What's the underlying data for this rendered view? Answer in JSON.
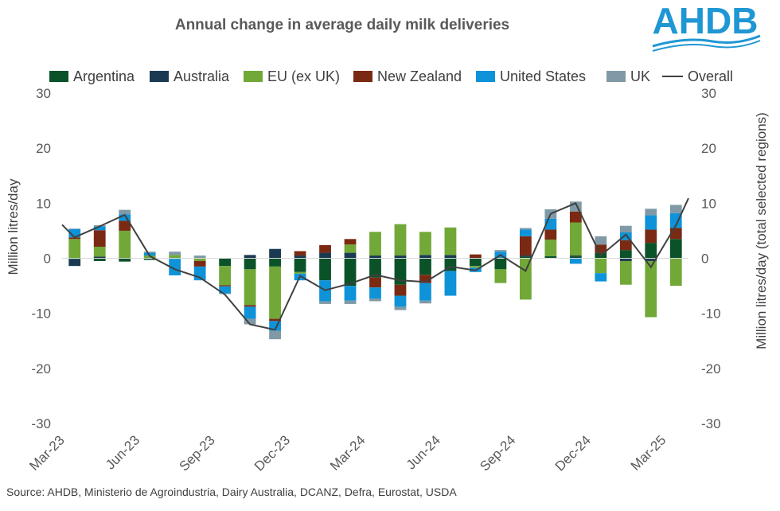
{
  "chart_data": {
    "type": "bar",
    "stacked": true,
    "title": "Annual change in average daily milk deliveries",
    "ylabel_left": "Million litres/day",
    "ylabel_right": "Million litres/day (total selected regions)",
    "ylim": [
      -30,
      30
    ],
    "yticks": [
      -30,
      -20,
      -10,
      0,
      10,
      20,
      30
    ],
    "x_labels": [
      "Mar-23",
      "Jun-23",
      "Sep-23",
      "Dec-23",
      "Mar-24",
      "Jun-24",
      "Sep-24",
      "Dec-24",
      "Mar-25"
    ],
    "categories": [
      "Mar-23",
      "Apr-23",
      "May-23",
      "Jun-23",
      "Jul-23",
      "Aug-23",
      "Sep-23",
      "Oct-23",
      "Nov-23",
      "Dec-23",
      "Jan-24",
      "Feb-24",
      "Mar-24",
      "Apr-24",
      "May-24",
      "Jun-24",
      "Jul-24",
      "Aug-24",
      "Sep-24",
      "Oct-24",
      "Nov-24",
      "Dec-24",
      "Jan-25",
      "Feb-25",
      "Mar-25"
    ],
    "series": [
      {
        "name": "Argentina",
        "color": "#0b5229",
        "values": [
          -0.2,
          -0.5,
          -0.6,
          -0.3,
          -0.1,
          0.0,
          -1.4,
          -2.0,
          -1.5,
          -2.5,
          -4.0,
          -5.0,
          -3.5,
          -4.8,
          -3.0,
          -2.3,
          -1.4,
          -2.0,
          0.3,
          0.4,
          0.3,
          1.0,
          1.5,
          2.8,
          3.5
        ]
      },
      {
        "name": "Australia",
        "color": "#1b3a52",
        "values": [
          -1.2,
          0.3,
          0.0,
          0.0,
          0.0,
          0.0,
          0.0,
          0.6,
          1.7,
          0.5,
          1.0,
          1.0,
          0.5,
          0.5,
          0.6,
          0.6,
          0.0,
          0.0,
          0.2,
          0.0,
          0.2,
          0.0,
          -0.5,
          -0.5,
          0.0
        ]
      },
      {
        "name": "EU (ex UK)",
        "color": "#71a837",
        "values": [
          3.5,
          1.8,
          5.0,
          0.5,
          0.6,
          -0.5,
          -3.5,
          -6.5,
          -9.5,
          -0.3,
          0.0,
          1.5,
          4.3,
          5.7,
          4.2,
          5.0,
          -0.3,
          -2.5,
          -7.5,
          3.0,
          6.0,
          -2.7,
          -4.3,
          -10.2,
          -5.0
        ]
      },
      {
        "name": "New Zealand",
        "color": "#7a2a12",
        "values": [
          0.3,
          3.0,
          1.8,
          0.0,
          0.0,
          -1.0,
          -0.2,
          -0.3,
          -0.4,
          0.8,
          1.4,
          1.0,
          -1.8,
          -2.0,
          -1.5,
          0.0,
          0.7,
          0.0,
          3.5,
          1.8,
          2.0,
          1.5,
          1.8,
          2.4,
          2.0
        ]
      },
      {
        "name": "United States",
        "color": "#0e93d8",
        "values": [
          1.5,
          0.7,
          1.2,
          0.5,
          -3.0,
          -2.5,
          -1.3,
          -2.2,
          -1.8,
          -1.2,
          -3.8,
          -2.7,
          -2.0,
          -2.0,
          -3.2,
          -4.5,
          -0.8,
          1.2,
          1.2,
          2.0,
          -1.0,
          -1.5,
          1.4,
          2.6,
          2.7
        ]
      },
      {
        "name": "UK",
        "color": "#7f9aa6",
        "values": [
          0.1,
          0.2,
          0.8,
          0.2,
          0.6,
          0.5,
          -0.1,
          -1.0,
          -1.5,
          0.0,
          -0.5,
          -0.6,
          -0.5,
          -0.6,
          -0.5,
          0.0,
          0.0,
          0.3,
          0.3,
          1.7,
          1.8,
          1.5,
          1.2,
          1.2,
          1.5
        ]
      },
      {
        "name": "Overall",
        "color": "#404040",
        "type": "line",
        "values": [
          3.8,
          5.8,
          7.9,
          0.4,
          -2.0,
          -3.5,
          -6.6,
          -12.0,
          -13.0,
          -3.2,
          -5.8,
          -4.6,
          -3.0,
          -4.0,
          -4.3,
          -1.5,
          -2.2,
          0.6,
          -2.3,
          8.1,
          10.0,
          0.5,
          4.3,
          -1.6,
          6.0
        ]
      }
    ],
    "overall_edges": {
      "start": 6.1,
      "end": 10.9
    },
    "legend_position": "top",
    "grid": false
  },
  "source": "Source: AHDB, Ministerio de Agroindustria, Dairy Australia, DCANZ, Defra, Eurostat, USDA",
  "logo": {
    "text": "AHDB"
  }
}
